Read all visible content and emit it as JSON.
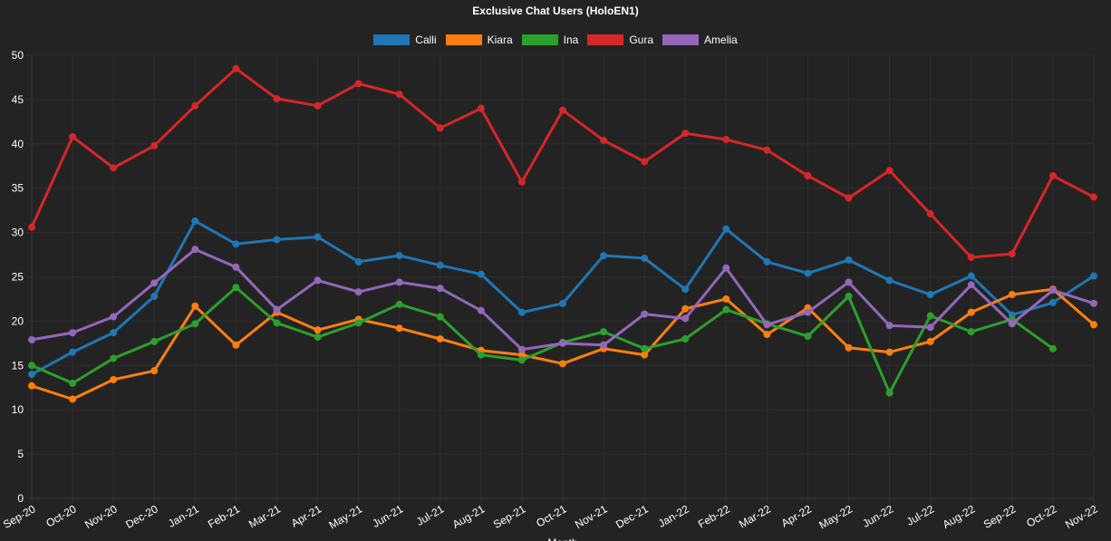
{
  "chart_data": {
    "type": "line",
    "title": "Exclusive Chat Users (HoloEN1)",
    "xlabel": "Month",
    "ylabel": "",
    "ylim": [
      0,
      50
    ],
    "y_ticks": [
      0,
      5,
      10,
      15,
      20,
      25,
      30,
      35,
      40,
      45,
      50
    ],
    "grid": true,
    "legend_position": "top-center",
    "categories": [
      "Sep-20",
      "Oct-20",
      "Nov-20",
      "Dec-20",
      "Jan-21",
      "Feb-21",
      "Mar-21",
      "Apr-21",
      "May-21",
      "Jun-21",
      "Jul-21",
      "Aug-21",
      "Sep-21",
      "Oct-21",
      "Nov-21",
      "Dec-21",
      "Jan-22",
      "Feb-22",
      "Mar-22",
      "Apr-22",
      "May-22",
      "Jun-22",
      "Jul-22",
      "Aug-22",
      "Sep-22",
      "Oct-22",
      "Nov-22"
    ],
    "series": [
      {
        "name": "Calli",
        "color": "#1f77b4",
        "values": [
          14.0,
          16.5,
          18.7,
          22.8,
          31.3,
          28.7,
          29.2,
          29.5,
          26.7,
          27.4,
          26.3,
          25.3,
          21.0,
          22.0,
          27.4,
          27.1,
          23.6,
          30.4,
          26.7,
          25.4,
          26.9,
          24.6,
          23.0,
          25.1,
          20.7,
          22.1,
          25.1
        ]
      },
      {
        "name": "Kiara",
        "color": "#ff7f0e",
        "values": [
          12.7,
          11.2,
          13.4,
          14.4,
          21.7,
          17.3,
          21.0,
          19.0,
          20.2,
          19.2,
          18.0,
          16.7,
          16.2,
          15.2,
          16.9,
          16.2,
          21.4,
          22.5,
          18.5,
          21.5,
          17.0,
          16.5,
          17.7,
          21.0,
          23.0,
          23.6,
          19.6
        ]
      },
      {
        "name": "Ina",
        "color": "#2ca02c",
        "values": [
          15.0,
          13.0,
          15.8,
          17.7,
          19.7,
          23.8,
          19.8,
          18.2,
          19.8,
          21.9,
          20.5,
          16.2,
          15.6,
          17.6,
          18.8,
          16.9,
          18.0,
          21.3,
          19.7,
          18.3,
          22.8,
          11.9,
          20.6,
          18.8,
          20.2,
          16.9,
          null
        ]
      },
      {
        "name": "Gura",
        "color": "#d62728",
        "values": [
          30.6,
          40.8,
          37.3,
          39.8,
          44.3,
          48.5,
          45.1,
          44.3,
          46.8,
          45.6,
          41.8,
          44.0,
          35.7,
          43.8,
          40.4,
          38.0,
          41.2,
          40.5,
          39.3,
          36.4,
          33.9,
          37.0,
          32.1,
          27.2,
          27.6,
          36.4,
          34.0
        ]
      },
      {
        "name": "Amelia",
        "color": "#9467bd",
        "values": [
          17.9,
          18.7,
          20.5,
          24.3,
          28.1,
          26.1,
          21.3,
          24.6,
          23.3,
          24.4,
          23.7,
          21.2,
          16.8,
          17.5,
          17.3,
          20.8,
          20.3,
          26.0,
          19.6,
          21.0,
          24.4,
          19.5,
          19.3,
          24.1,
          19.7,
          23.5,
          22.0
        ]
      }
    ]
  }
}
